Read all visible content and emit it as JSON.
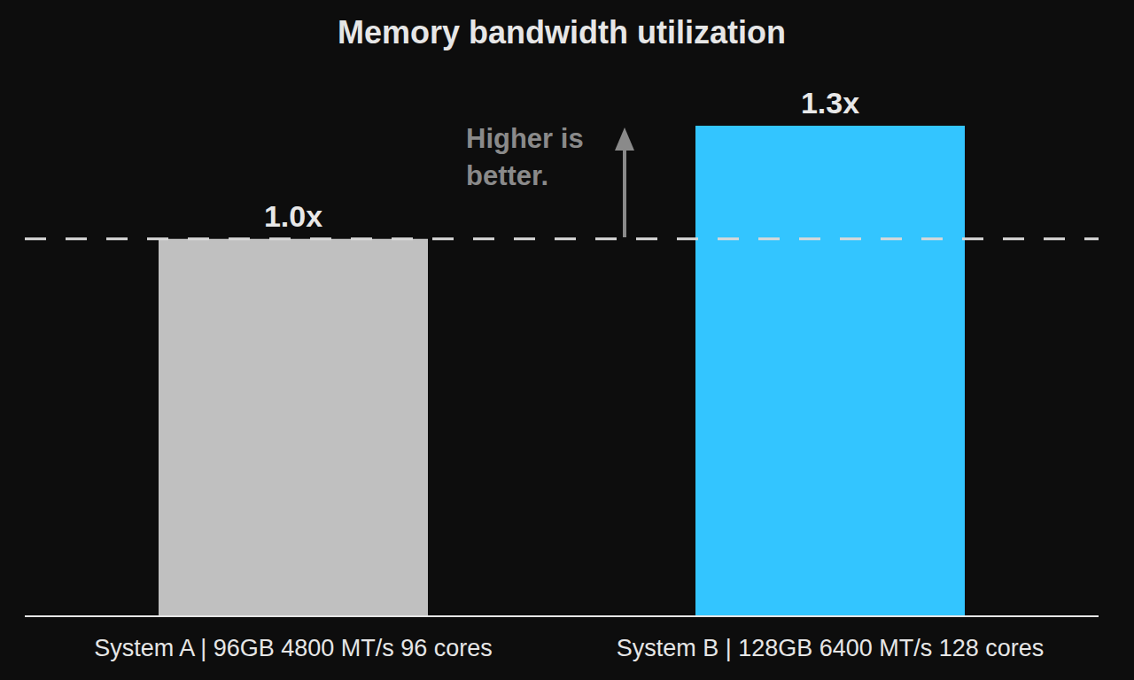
{
  "chart_data": {
    "type": "bar",
    "title": "Memory bandwidth utilization",
    "categories": [
      "System A | 96GB 4800 MT/s 96 cores",
      "System B | 128GB 6400 MT/s 128 cores"
    ],
    "values": [
      1.0,
      1.3
    ],
    "value_labels": [
      "1.0x",
      "1.3x"
    ],
    "colors": [
      "#c0c0c0",
      "#33c5ff"
    ],
    "ylim": [
      0,
      1.3
    ],
    "grid": false,
    "data_labels": true,
    "tick_labels": "x",
    "reference_line": {
      "value": 1.0,
      "line_style": "dashed"
    },
    "annotations": [
      {
        "text": "Higher is better."
      }
    ]
  }
}
